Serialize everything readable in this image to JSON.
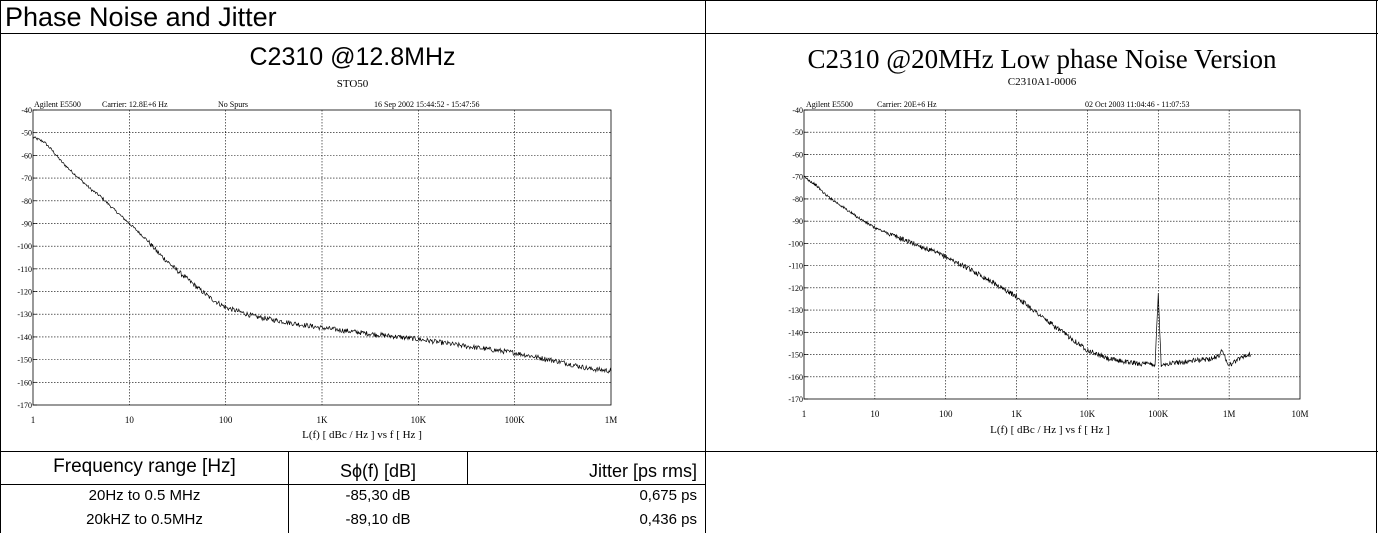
{
  "header": {
    "title": "Phase Noise and Jitter"
  },
  "left_chart": {
    "title": "C2310 @12.8MHz",
    "subtitle": "STO50",
    "info": {
      "instrument": "Agilent E5500",
      "carrier": "Carrier: 12.8E+6 Hz",
      "spurs": "No Spurs",
      "date": "16 Sep 2002  15:44:52 - 15:47:56"
    },
    "xlabel": "L(f)  [ dBc / Hz ]  vs  f  [ Hz ]"
  },
  "right_chart": {
    "title": "C2310 @20MHz Low phase Noise Version",
    "subtitle": "C2310A1-0006",
    "info": {
      "instrument": "Agilent E5500",
      "carrier": "Carrier: 20E+6 Hz",
      "date": "02 Oct 2003  11:04:46 - 11:07:53"
    },
    "xlabel": "L(f)  [ dBc / Hz ]  vs  f  [ Hz ]"
  },
  "chart_data": [
    {
      "type": "line",
      "title": "C2310 @12.8MHz",
      "subtitle": "STO50",
      "xlabel": "L(f)  [ dBc / Hz ]  vs  f  [ Hz ]",
      "ylabel": "",
      "xscale": "log",
      "xlim": [
        1,
        1000000
      ],
      "ylim": [
        -170,
        -40
      ],
      "grid": true,
      "x_ticks": [
        "1",
        "10",
        "100",
        "1K",
        "10K",
        "100K",
        "1M"
      ],
      "y_ticks": [
        "-40",
        "-50",
        "-60",
        "-70",
        "-80",
        "-90",
        "-100",
        "-110",
        "-120",
        "-130",
        "-140",
        "-150",
        "-160",
        "-170"
      ],
      "series": [
        {
          "x": [
            1,
            1.3,
            1.6,
            2,
            2.5,
            3,
            4,
            5,
            7,
            10,
            15,
            20,
            30,
            50,
            70,
            100,
            200,
            500,
            1000,
            3000,
            10000,
            30000,
            100000,
            300000,
            600000,
            1000000
          ],
          "y": [
            -52,
            -54,
            -58,
            -63,
            -67,
            -70,
            -75,
            -78,
            -84,
            -90,
            -97,
            -103,
            -110,
            -118,
            -123,
            -127,
            -131,
            -134,
            -136,
            -138.5,
            -141,
            -144,
            -147,
            -151,
            -154,
            -155
          ]
        }
      ]
    },
    {
      "type": "line",
      "title": "C2310 @20MHz Low phase Noise Version",
      "subtitle": "C2310A1-0006",
      "xlabel": "L(f)  [ dBc / Hz ]  vs  f  [ Hz ]",
      "ylabel": "",
      "xscale": "log",
      "xlim": [
        1,
        10000000
      ],
      "ylim": [
        -170,
        -40
      ],
      "grid": true,
      "x_ticks": [
        "1",
        "10",
        "100",
        "1K",
        "10K",
        "100K",
        "1M",
        "10M"
      ],
      "y_ticks": [
        "-40",
        "-50",
        "-60",
        "-70",
        "-80",
        "-90",
        "-100",
        "-110",
        "-120",
        "-130",
        "-140",
        "-150",
        "-160",
        "-170"
      ],
      "series": [
        {
          "x": [
            1,
            1.5,
            2,
            3,
            5,
            7,
            10,
            20,
            50,
            100,
            300,
            1000,
            3000,
            10000,
            20000,
            50000,
            90000,
            100000,
            110000,
            200000,
            500000,
            700000,
            800000,
            900000,
            1000000,
            1500000,
            2000000
          ],
          "y": [
            -70,
            -74,
            -78,
            -82,
            -87,
            -90,
            -93,
            -97,
            -102,
            -106,
            -114,
            -124,
            -136,
            -148,
            -152,
            -154,
            -154.5,
            -123,
            -154.5,
            -153.5,
            -152,
            -151,
            -148,
            -152,
            -155,
            -151,
            -150
          ]
        }
      ]
    }
  ],
  "table": {
    "headers": [
      "Frequency range [Hz]",
      "Sϕ(f) [dB]",
      "Jitter [ps rms]"
    ],
    "rows": [
      [
        "20Hz to 0.5 MHz",
        "-85,30 dB",
        "0,675 ps"
      ],
      [
        "20kHZ to 0.5MHz",
        "-89,10 dB",
        "0,436 ps"
      ]
    ]
  }
}
